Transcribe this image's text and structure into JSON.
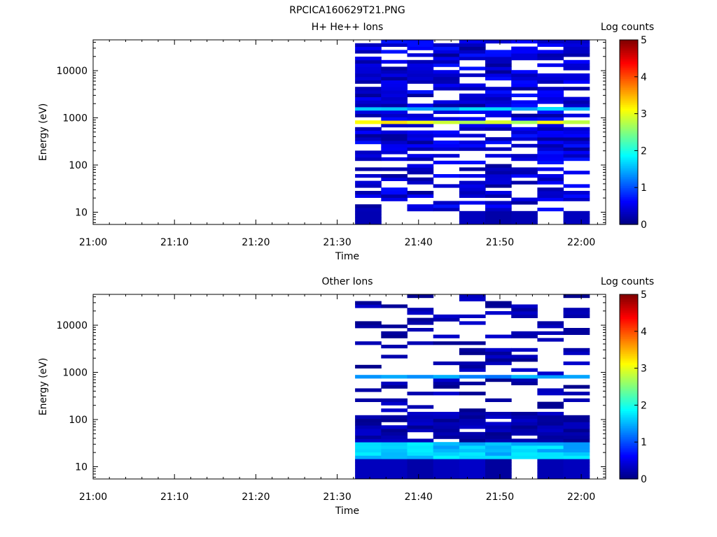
{
  "chart_data": [
    {
      "type": "heatmap",
      "figure_title": "RPCICA160629T21.PNG",
      "title": "H+ He++ Ions",
      "xlabel": "Time",
      "ylabel": "Energy (eV)",
      "x_ticks": [
        "21:00",
        "21:10",
        "21:20",
        "21:30",
        "21:40",
        "21:50",
        "22:00"
      ],
      "x_range_minutes": [
        0,
        63
      ],
      "y_scale": "log",
      "y_range": [
        5.5,
        45000
      ],
      "y_ticks": [
        {
          "value": 10,
          "label": "10"
        },
        {
          "value": 100,
          "label": "100"
        },
        {
          "value": 1000,
          "label": "1000"
        },
        {
          "value": 10000,
          "label": "10000"
        }
      ],
      "colorbar": {
        "label": "Log counts",
        "range": [
          0,
          5
        ],
        "ticks": [
          "0",
          "1",
          "2",
          "3",
          "4",
          "5"
        ]
      },
      "data_start_minute": 32.2,
      "columns": 9,
      "column_width_minutes": 3.2,
      "y_bins": 55,
      "seed": 11,
      "background_level": 0.55,
      "fill_probability": 0.78,
      "low_energy_fill_probability": 0.5,
      "bright_bands": [
        {
          "e_min": 700,
          "e_max": 950,
          "level": 2.9
        },
        {
          "e_min": 1550,
          "e_max": 1800,
          "level": 1.6
        }
      ],
      "lowest_bins": {
        "e_max": 11,
        "pattern": [
          0.25,
          0,
          0,
          0,
          0.3,
          0.2,
          0.25,
          0,
          0.3
        ]
      }
    },
    {
      "type": "heatmap",
      "title": "Other Ions",
      "xlabel": "Time",
      "ylabel": "Energy (eV)",
      "x_ticks": [
        "21:00",
        "21:10",
        "21:20",
        "21:30",
        "21:40",
        "21:50",
        "22:00"
      ],
      "x_range_minutes": [
        0,
        63
      ],
      "y_scale": "log",
      "y_range": [
        5.5,
        45000
      ],
      "y_ticks": [
        {
          "value": 10,
          "label": "10"
        },
        {
          "value": 100,
          "label": "100"
        },
        {
          "value": 1000,
          "label": "1000"
        },
        {
          "value": 10000,
          "label": "10000"
        }
      ],
      "colorbar": {
        "label": "Log counts",
        "range": [
          0,
          5
        ],
        "ticks": [
          "0",
          "1",
          "2",
          "3",
          "4",
          "5"
        ]
      },
      "data_start_minute": 32.2,
      "columns": 9,
      "column_width_minutes": 3.2,
      "y_bins": 55,
      "seed": 29,
      "background_level": 0.3,
      "fill_probability": 0.3,
      "low_energy_fill_probability": 0.85,
      "bright_bands": [
        {
          "e_min": 760,
          "e_max": 880,
          "level": 1.35
        },
        {
          "e_min": 1650,
          "e_max": 1750,
          "level": 0.7
        },
        {
          "e_min": 14,
          "e_max": 35,
          "level": 1.6
        }
      ],
      "lowest_bins": {
        "e_max": 17,
        "pattern": [
          0.3,
          0.3,
          0.2,
          0.3,
          0.35,
          0.15,
          0,
          0.25,
          0.3
        ]
      }
    }
  ]
}
